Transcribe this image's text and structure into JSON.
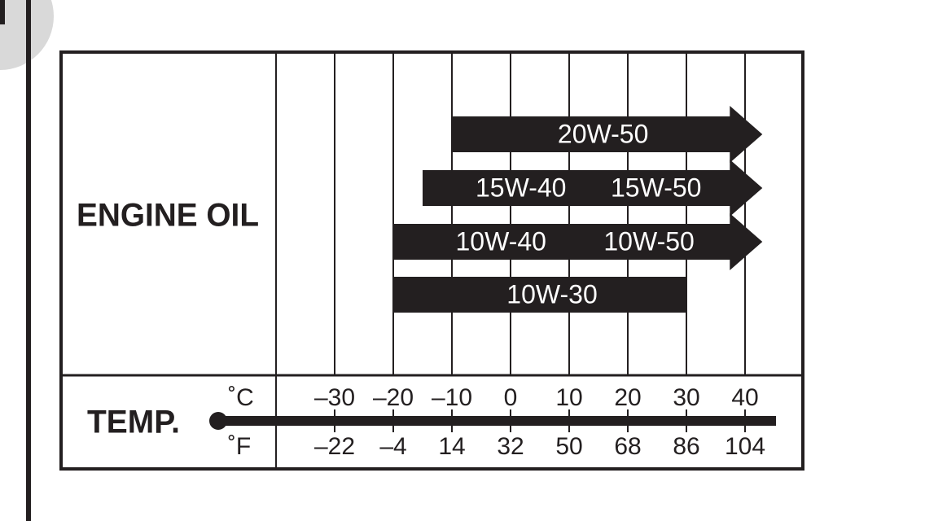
{
  "chart_data": {
    "type": "range_bar",
    "title": "ENGINE OIL",
    "axis_label": "TEMP.",
    "x_unit": "˚C",
    "x2_unit": "˚F",
    "xlim": [
      -40,
      50
    ],
    "xticks": [
      {
        "value": -30,
        "label": "–30"
      },
      {
        "value": -20,
        "label": "–20"
      },
      {
        "value": -10,
        "label": "–10"
      },
      0,
      10,
      20,
      30,
      40
    ],
    "x2lim": [
      -40,
      122
    ],
    "x2ticks": [
      {
        "value": -22,
        "label": "–22"
      },
      {
        "value": -4,
        "label": "–4"
      },
      14,
      32,
      50,
      68,
      86,
      104
    ],
    "grid": true,
    "color": "#231f20",
    "series": [
      {
        "labels": [
          "20W-50"
        ],
        "start": -10,
        "end": null
      },
      {
        "labels": [
          "15W-40",
          "15W-50"
        ],
        "start": -15,
        "end": null
      },
      {
        "labels": [
          "10W-40",
          "10W-50"
        ],
        "start": -20,
        "end": null
      },
      {
        "labels": [
          "10W-30"
        ],
        "start": -20,
        "end": 30
      }
    ]
  }
}
